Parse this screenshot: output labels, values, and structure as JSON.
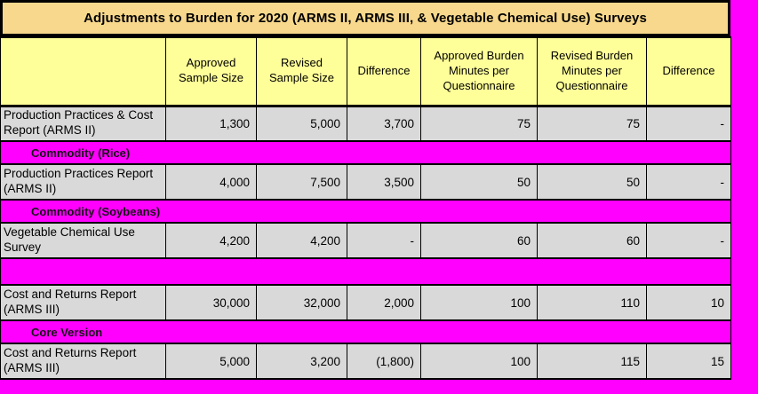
{
  "title": "Adjustments to Burden for 2020 (ARMS II, ARMS III, & Vegetable Chemical Use) Surveys",
  "table": {
    "columns": [
      "",
      "Approved Sample Size",
      "Revised Sample Size",
      "Difference",
      "Approved Burden Minutes per Questionnaire",
      "Revised Burden Minutes per Questionnaire",
      "Difference"
    ],
    "rows": [
      {
        "type": "data",
        "label": "Production Practices & Cost Report (ARMS II)",
        "values": [
          "1,300",
          "5,000",
          "3,700",
          "75",
          "75",
          "-"
        ]
      },
      {
        "type": "band",
        "label": "Commodity  (Rice)"
      },
      {
        "type": "data",
        "label": "Production Practices Report (ARMS II)",
        "values": [
          "4,000",
          "7,500",
          "3,500",
          "50",
          "50",
          "-"
        ]
      },
      {
        "type": "band",
        "label": "Commodity  (Soybeans)"
      },
      {
        "type": "data",
        "label": "Vegetable Chemical Use Survey",
        "values": [
          "4,200",
          "4,200",
          "-",
          "60",
          "60",
          "-"
        ]
      },
      {
        "type": "band",
        "label": ""
      },
      {
        "type": "data",
        "label": "Cost and Returns Report (ARMS III)",
        "values": [
          "30,000",
          "32,000",
          "2,000",
          "100",
          "110",
          "10"
        ]
      },
      {
        "type": "band",
        "label": "Core Version"
      },
      {
        "type": "data",
        "label": "Cost and Returns Report (ARMS III)",
        "values": [
          "5,000",
          "3,200",
          "(1,800)",
          "100",
          "115",
          "15"
        ]
      }
    ]
  },
  "colors": {
    "page_background": "#FF00FF",
    "title_background": "#F8D88C",
    "header_background": "#FFFF99",
    "cell_background": "#D9D9D9",
    "band_background": "#FF00FF",
    "border": "#000000"
  }
}
